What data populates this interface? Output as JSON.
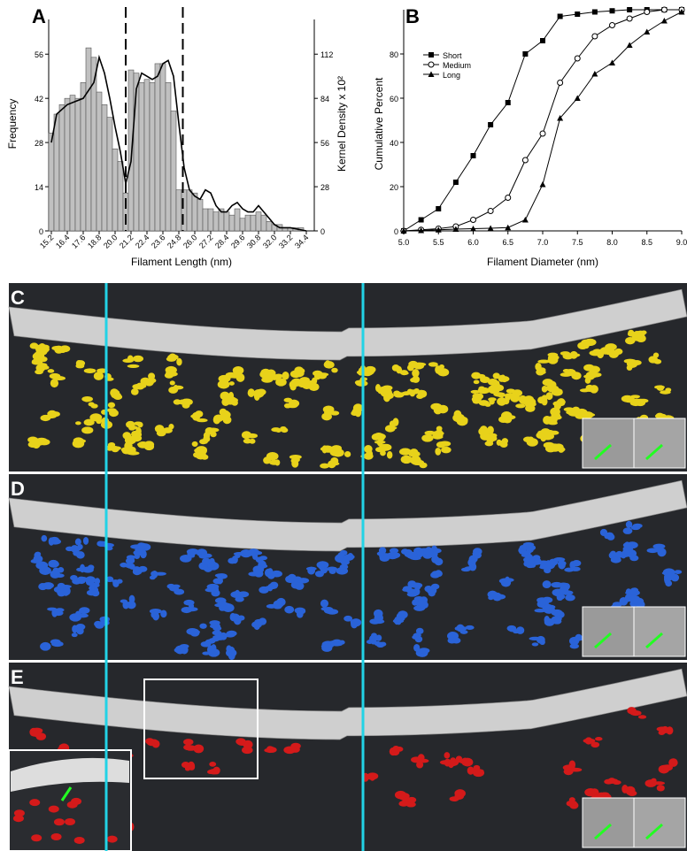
{
  "chart_data": [
    {
      "type": "histogram",
      "label": "A",
      "xlabel": "Filament Length (nm)",
      "ylabel": "Frequency",
      "y2label": "Kernel Density x 10²",
      "color": "#c0c0c0",
      "bins": [
        15.0,
        15.4,
        15.8,
        16.2,
        16.6,
        17.0,
        17.4,
        17.8,
        18.2,
        18.6,
        19.0,
        19.4,
        19.8,
        20.2,
        20.6,
        21.0,
        21.4,
        21.8,
        22.2,
        22.6,
        23.0,
        23.4,
        23.8,
        24.2,
        24.6,
        25.0,
        25.4,
        25.8,
        26.2,
        26.6,
        27.0,
        27.4,
        27.8,
        28.2,
        28.6,
        29.0,
        29.4,
        29.8,
        30.2,
        30.6,
        31.0,
        31.4,
        31.8,
        32.2,
        32.6,
        33.0,
        33.4,
        33.8,
        34.2
      ],
      "values": [
        31,
        37,
        40,
        42,
        43,
        42,
        47,
        58,
        55,
        44,
        40,
        36,
        26,
        22,
        12,
        51,
        50,
        47,
        48,
        47,
        53,
        53,
        47,
        38,
        13,
        13,
        13,
        12,
        10,
        7,
        7,
        6,
        7,
        6,
        5,
        7,
        4,
        5,
        5,
        6,
        5,
        3,
        2,
        2,
        1,
        1,
        1,
        1
      ],
      "xlim": [
        15.0,
        35.0
      ],
      "xticks": [
        15.2,
        16.4,
        17.6,
        18.8,
        {
          "value": 20,
          "label": "20.0"
        },
        21.2,
        22.4,
        23.6,
        24.8,
        {
          "value": 26,
          "label": "26.0"
        },
        27.2,
        28.4,
        29.6,
        30.8,
        {
          "value": 32,
          "label": "32.0"
        },
        33.2,
        34.4
      ],
      "ylim": [
        0,
        67
      ],
      "yticks": [
        0,
        14,
        28,
        42,
        56
      ],
      "y2lim": [
        0,
        134
      ],
      "y2ticks": [
        0,
        28,
        56,
        84,
        112
      ],
      "curve": {
        "axis": "y2",
        "color": "#000000",
        "x": [
          15.2,
          15.6,
          16.4,
          17.6,
          18.4,
          18.8,
          19.2,
          19.6,
          20.0,
          20.4,
          20.8,
          21.2,
          21.6,
          22.0,
          22.4,
          22.8,
          23.2,
          23.6,
          24.0,
          24.4,
          24.8,
          25.2,
          25.6,
          26.0,
          26.4,
          26.8,
          27.2,
          27.6,
          28.0,
          28.4,
          28.8,
          29.2,
          29.6,
          30.0,
          30.4,
          30.8,
          31.2,
          31.6,
          32.0,
          32.4,
          33.2,
          34.4
        ],
        "values": [
          56,
          74,
          80,
          84,
          94,
          110,
          100,
          84,
          66,
          50,
          30,
          44,
          90,
          100,
          98,
          96,
          98,
          106,
          108,
          98,
          68,
          40,
          26,
          22,
          20,
          26,
          24,
          16,
          12,
          12,
          16,
          18,
          14,
          12,
          12,
          16,
          12,
          8,
          4,
          2,
          2,
          0
        ]
      },
      "markers_x": [
        20.8,
        25.1
      ]
    },
    {
      "type": "line",
      "label": "B",
      "xlabel": "Filament Diameter (nm)",
      "ylabel": "Cumulative Percent",
      "x": [
        5.0,
        5.25,
        5.5,
        5.75,
        6.0,
        6.25,
        6.5,
        6.75,
        7.0,
        7.25,
        7.5,
        7.75,
        8.0,
        8.25,
        8.5,
        8.75,
        9.0
      ],
      "xlim": [
        5.0,
        9.0
      ],
      "xticks": [
        {
          "value": 5,
          "label": "5.0"
        },
        5.5,
        {
          "value": 6,
          "label": "6.0"
        },
        6.5,
        {
          "value": 7,
          "label": "7.0"
        },
        7.5,
        {
          "value": 8,
          "label": "8.0"
        },
        8.5,
        {
          "value": 9,
          "label": "9.0"
        }
      ],
      "ylim": [
        0,
        100
      ],
      "yticks": [
        0,
        20,
        40,
        60,
        80
      ],
      "series": [
        {
          "name": "Short",
          "marker": "square",
          "color": "#000000",
          "values": [
            0,
            5,
            10,
            22,
            34,
            48,
            58,
            80,
            86,
            97,
            98,
            99,
            99.5,
            100,
            100,
            100,
            100
          ]
        },
        {
          "name": "Medium",
          "marker": "circle",
          "color": "#000000",
          "values": [
            0,
            0.5,
            1,
            2,
            5,
            9,
            15,
            32,
            44,
            67,
            78,
            88,
            93,
            96,
            99,
            100,
            100
          ]
        },
        {
          "name": "Long",
          "marker": "triangle",
          "color": "#000000",
          "values": [
            0,
            0.2,
            0.5,
            0.8,
            1,
            1.2,
            1.5,
            5,
            21,
            51,
            60,
            71,
            76,
            84,
            90,
            95,
            99
          ]
        }
      ]
    }
  ],
  "panels": [
    {
      "label": "C"
    },
    {
      "label": "D"
    },
    {
      "label": "E"
    }
  ]
}
